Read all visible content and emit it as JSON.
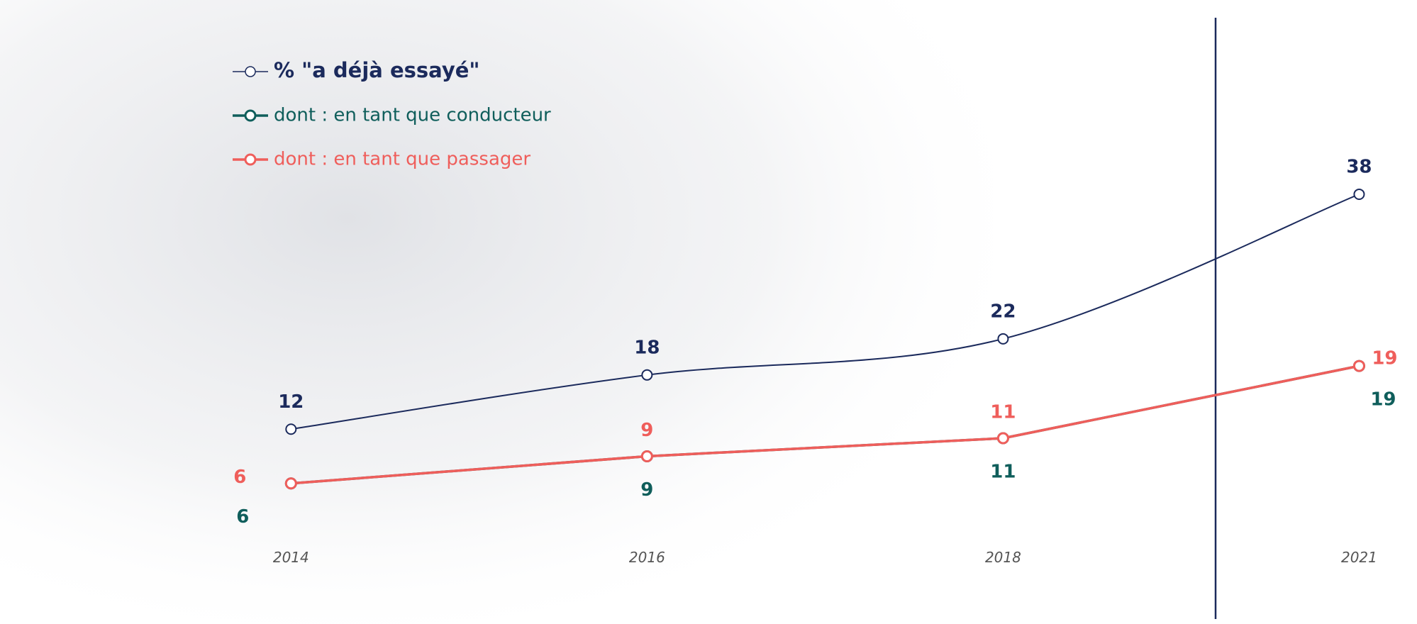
{
  "chart_data": {
    "type": "line",
    "categories": [
      "2014",
      "2016",
      "2018",
      "2021"
    ],
    "ylim": [
      0,
      50
    ],
    "series": [
      {
        "name": "% \"a déjà essayé\"",
        "color": "#1b2a5c",
        "values": [
          12,
          18,
          22,
          38
        ]
      },
      {
        "name": "dont : en tant que conducteur",
        "color": "#0f5e5b",
        "values": [
          6,
          9,
          11,
          19
        ]
      },
      {
        "name": "dont : en tant que passager",
        "color": "#ef5e5b",
        "values": [
          6,
          9,
          11,
          19
        ]
      }
    ]
  }
}
